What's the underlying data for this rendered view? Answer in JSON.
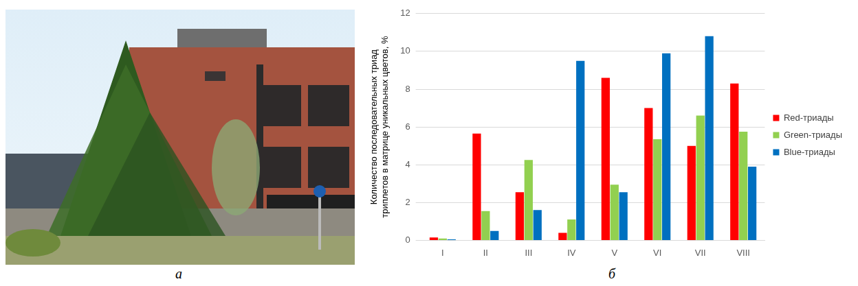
{
  "photo_panel": {
    "panel_label": "а"
  },
  "chart_data": {
    "type": "bar",
    "panel_label": "б",
    "y_label": "Количество последовательных триад триплетов в матрице уникальных цветов, %",
    "categories": [
      "I",
      "II",
      "III",
      "IV",
      "V",
      "VI",
      "VII",
      "VIII"
    ],
    "series": [
      {
        "name": "Red-триады",
        "color": "#ff0000",
        "values": [
          0.15,
          5.65,
          2.55,
          0.4,
          8.6,
          7.0,
          5.0,
          8.3
        ]
      },
      {
        "name": "Green-триады",
        "color": "#92d050",
        "values": [
          0.1,
          1.55,
          4.25,
          1.1,
          2.95,
          5.35,
          6.6,
          5.75
        ]
      },
      {
        "name": "Blue-триады",
        "color": "#0070c0",
        "values": [
          0.05,
          0.5,
          1.6,
          9.5,
          2.55,
          9.9,
          10.8,
          3.9
        ]
      }
    ],
    "ylim": [
      0,
      12
    ],
    "yticks": [
      0,
      2,
      4,
      6,
      8,
      10,
      12
    ],
    "grid": true,
    "legend": "right"
  }
}
